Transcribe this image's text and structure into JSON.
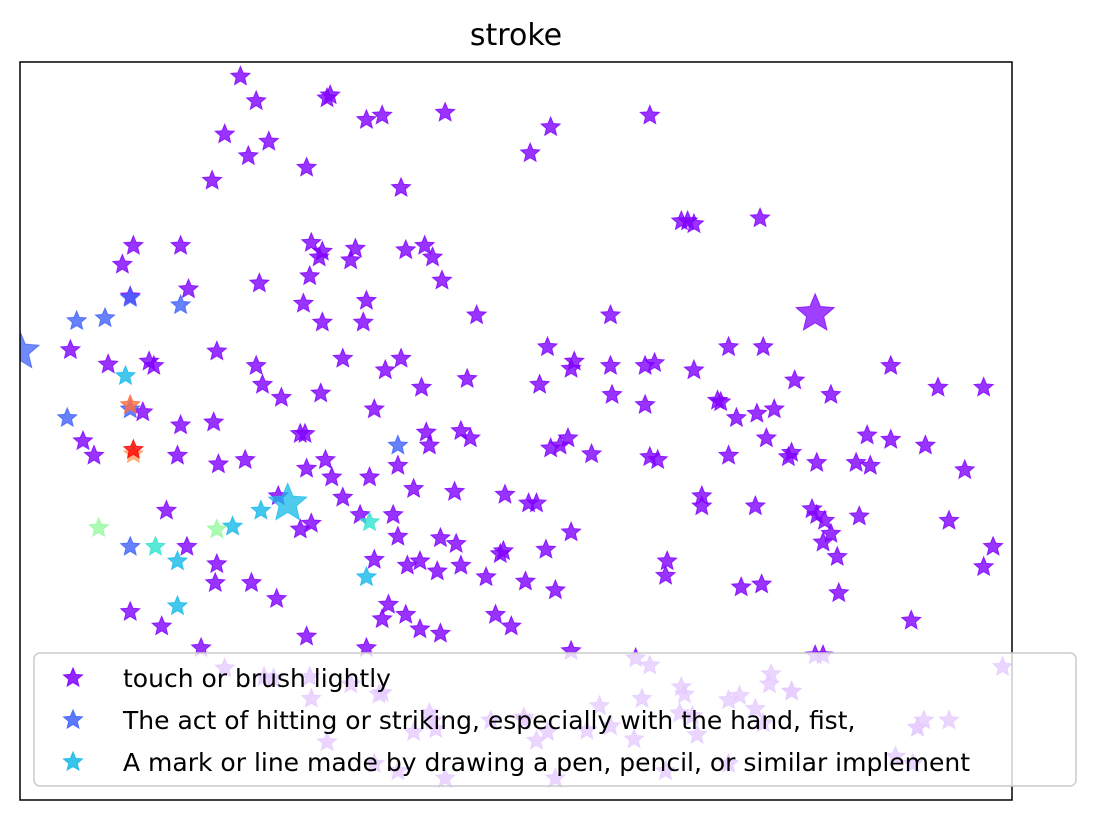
{
  "chart_data": {
    "type": "scatter",
    "title": "stroke",
    "xlabel": "",
    "ylabel": "",
    "xlim": [
      -2.9,
      3.4
    ],
    "ylim": [
      -2.75,
      2.35
    ],
    "grid": false,
    "legend": "bottom",
    "marker": "star",
    "series": [
      {
        "name": "touch or brush lightly",
        "color": "#8000ff",
        "points": [
          [
            -1.5,
            2.25
          ],
          [
            -1.4,
            2.08
          ],
          [
            -0.95,
            2.1
          ],
          [
            -0.93,
            2.12
          ],
          [
            -0.7,
            1.95
          ],
          [
            -0.6,
            1.98
          ],
          [
            -1.6,
            1.85
          ],
          [
            -1.32,
            1.8
          ],
          [
            -1.45,
            1.7
          ],
          [
            -0.2,
            2.0
          ],
          [
            0.34,
            1.72
          ],
          [
            0.47,
            1.9
          ],
          [
            1.1,
            1.98
          ],
          [
            -1.68,
            1.53
          ],
          [
            -1.08,
            1.62
          ],
          [
            -0.48,
            1.48
          ],
          [
            1.3,
            1.25
          ],
          [
            1.34,
            1.25
          ],
          [
            1.38,
            1.23
          ],
          [
            1.8,
            1.27
          ],
          [
            -2.18,
            1.08
          ],
          [
            -1.88,
            1.08
          ],
          [
            -0.77,
            1.06
          ],
          [
            -1.05,
            1.1
          ],
          [
            -1.0,
            1.0
          ],
          [
            -0.8,
            0.98
          ],
          [
            -0.98,
            1.04
          ],
          [
            -0.45,
            1.05
          ],
          [
            -0.33,
            1.08
          ],
          [
            -0.28,
            1.0
          ],
          [
            -2.25,
            0.95
          ],
          [
            -1.83,
            0.78
          ],
          [
            -1.38,
            0.82
          ],
          [
            -1.1,
            0.68
          ],
          [
            -1.06,
            0.87
          ],
          [
            -0.7,
            0.7
          ],
          [
            -0.22,
            0.84
          ],
          [
            -0.0,
            0.6
          ],
          [
            -2.2,
            0.73
          ],
          [
            -0.98,
            0.55
          ],
          [
            -0.72,
            0.55
          ],
          [
            -0.48,
            0.3
          ],
          [
            0.85,
            0.6
          ],
          [
            0.45,
            0.38
          ],
          [
            0.62,
            0.28
          ],
          [
            0.85,
            0.25
          ],
          [
            1.07,
            0.25
          ],
          [
            1.13,
            0.27
          ],
          [
            1.38,
            0.22
          ],
          [
            1.82,
            0.38
          ],
          [
            1.6,
            0.38
          ],
          [
            -2.58,
            0.36
          ],
          [
            -2.34,
            0.26
          ],
          [
            -2.05,
            0.25
          ],
          [
            -2.08,
            0.28
          ],
          [
            -1.65,
            0.35
          ],
          [
            -1.4,
            0.25
          ],
          [
            -1.36,
            0.12
          ],
          [
            -0.58,
            0.22
          ],
          [
            -0.35,
            0.1
          ],
          [
            -0.06,
            0.16
          ],
          [
            0.4,
            0.12
          ],
          [
            0.6,
            0.23
          ],
          [
            0.86,
            0.05
          ],
          [
            1.07,
            -0.02
          ],
          [
            1.53,
            0.01
          ],
          [
            1.55,
            0.0
          ],
          [
            1.78,
            -0.08
          ],
          [
            1.65,
            -0.11
          ],
          [
            1.89,
            -0.05
          ],
          [
            2.02,
            0.15
          ],
          [
            2.25,
            0.05
          ],
          [
            2.63,
            0.25
          ],
          [
            2.93,
            0.1
          ],
          [
            3.22,
            0.1
          ],
          [
            -1.24,
            0.03
          ],
          [
            -0.99,
            0.06
          ],
          [
            -0.85,
            0.3
          ],
          [
            -1.88,
            -0.16
          ],
          [
            -1.67,
            -0.14
          ],
          [
            -0.65,
            -0.05
          ],
          [
            -0.32,
            -0.21
          ],
          [
            -0.3,
            -0.3
          ],
          [
            -0.1,
            -0.2
          ],
          [
            -0.04,
            -0.25
          ],
          [
            0.47,
            -0.32
          ],
          [
            0.53,
            -0.3
          ],
          [
            0.58,
            -0.25
          ],
          [
            0.73,
            -0.36
          ],
          [
            1.6,
            -0.37
          ],
          [
            1.84,
            -0.25
          ],
          [
            2.0,
            -0.35
          ],
          [
            2.48,
            -0.23
          ],
          [
            2.63,
            -0.26
          ],
          [
            2.85,
            -0.3
          ],
          [
            -2.12,
            -0.07
          ],
          [
            -1.9,
            -0.37
          ],
          [
            -1.47,
            -0.4
          ],
          [
            -0.96,
            -0.4
          ],
          [
            -1.26,
            -0.65
          ],
          [
            -1.64,
            -0.43
          ],
          [
            -1.12,
            -0.22
          ],
          [
            -1.09,
            -0.22
          ],
          [
            -1.08,
            -0.46
          ],
          [
            -0.92,
            -0.52
          ],
          [
            -0.85,
            -0.66
          ],
          [
            -0.68,
            -0.52
          ],
          [
            -0.5,
            -0.44
          ],
          [
            -0.4,
            -0.6
          ],
          [
            -0.14,
            -0.62
          ],
          [
            0.18,
            -0.64
          ],
          [
            0.33,
            -0.7
          ],
          [
            0.38,
            -0.7
          ],
          [
            1.1,
            -0.38
          ],
          [
            1.15,
            -0.4
          ],
          [
            1.98,
            -0.38
          ],
          [
            2.16,
            -0.42
          ],
          [
            2.41,
            -0.42
          ],
          [
            2.5,
            -0.44
          ],
          [
            3.1,
            -0.47
          ],
          [
            -2.43,
            -0.37
          ],
          [
            -2.5,
            -0.27
          ],
          [
            -1.97,
            -0.75
          ],
          [
            -1.12,
            -0.88
          ],
          [
            -1.05,
            -0.84
          ],
          [
            -0.74,
            -0.78
          ],
          [
            -0.53,
            -0.78
          ],
          [
            -0.5,
            -0.93
          ],
          [
            -0.23,
            -0.94
          ],
          [
            -0.13,
            -0.98
          ],
          [
            0.15,
            -1.05
          ],
          [
            0.17,
            -1.03
          ],
          [
            0.44,
            -1.02
          ],
          [
            0.6,
            -0.9
          ],
          [
            1.43,
            -0.65
          ],
          [
            1.43,
            -0.72
          ],
          [
            1.77,
            -0.72
          ],
          [
            2.13,
            -0.74
          ],
          [
            2.16,
            -0.78
          ],
          [
            2.21,
            -0.82
          ],
          [
            2.2,
            -0.97
          ],
          [
            2.29,
            -1.07
          ],
          [
            2.25,
            -0.91
          ],
          [
            2.43,
            -0.79
          ],
          [
            3.0,
            -0.82
          ],
          [
            3.28,
            -1.0
          ],
          [
            -1.65,
            -1.12
          ],
          [
            -1.84,
            -1.0
          ],
          [
            -0.65,
            -1.09
          ],
          [
            -0.44,
            -1.13
          ],
          [
            -0.36,
            -1.1
          ],
          [
            -0.25,
            -1.17
          ],
          [
            -0.1,
            -1.13
          ],
          [
            0.06,
            -1.21
          ],
          [
            0.31,
            -1.24
          ],
          [
            1.21,
            -1.1
          ],
          [
            0.5,
            -1.3
          ],
          [
            1.2,
            -1.2
          ],
          [
            1.68,
            -1.28
          ],
          [
            1.81,
            -1.26
          ],
          [
            2.3,
            -1.32
          ],
          [
            3.22,
            -1.14
          ],
          [
            -2.2,
            -1.45
          ],
          [
            -1.66,
            -1.25
          ],
          [
            -1.43,
            -1.25
          ],
          [
            -1.27,
            -1.36
          ],
          [
            -0.56,
            -1.4
          ],
          [
            -0.45,
            -1.47
          ],
          [
            0.12,
            -1.47
          ],
          [
            0.22,
            -1.55
          ],
          [
            -2.0,
            -1.55
          ],
          [
            -0.6,
            -1.5
          ],
          [
            -0.36,
            -1.57
          ],
          [
            -0.23,
            -1.6
          ],
          [
            0.6,
            -1.72
          ],
          [
            1.1,
            -1.82
          ],
          [
            2.76,
            -1.51
          ],
          [
            -1.75,
            -1.7
          ],
          [
            -1.08,
            -1.62
          ],
          [
            -0.7,
            -1.7
          ],
          [
            -1.6,
            -1.84
          ],
          [
            -1.35,
            -1.9
          ],
          [
            -1.29,
            -1.91
          ],
          [
            -1.06,
            -1.9
          ],
          [
            -0.6,
            -2.01
          ],
          [
            -0.8,
            -1.95
          ],
          [
            -0.62,
            -2.02
          ],
          [
            -1.05,
            -2.05
          ],
          [
            1.01,
            -1.77
          ],
          [
            1.87,
            -1.88
          ],
          [
            1.86,
            -1.95
          ],
          [
            2.0,
            -2.0
          ],
          [
            2.15,
            -1.75
          ],
          [
            2.2,
            -1.75
          ],
          [
            3.34,
            -1.83
          ],
          [
            1.32,
            -2.02
          ],
          [
            1.3,
            -1.97
          ],
          [
            1.67,
            -2.03
          ],
          [
            1.77,
            -2.12
          ],
          [
            1.82,
            -2.22
          ],
          [
            1.6,
            -2.06
          ],
          [
            1.37,
            -2.17
          ],
          [
            1.29,
            -2.15
          ],
          [
            1.05,
            -2.05
          ],
          [
            1.0,
            -2.33
          ],
          [
            0.85,
            -2.24
          ],
          [
            0.7,
            -2.27
          ],
          [
            0.45,
            -2.28
          ],
          [
            0.38,
            -2.34
          ],
          [
            0.3,
            -2.18
          ],
          [
            0.09,
            -2.2
          ],
          [
            0.78,
            -2.1
          ],
          [
            -0.3,
            -2.15
          ],
          [
            -0.28,
            -2.2
          ],
          [
            -0.26,
            -2.26
          ],
          [
            0.3,
            -2.2
          ],
          [
            -0.4,
            -2.28
          ],
          [
            2.8,
            -2.25
          ],
          [
            1.4,
            -2.3
          ],
          [
            1.6,
            -2.5
          ],
          [
            2.0,
            -2.0
          ],
          [
            2.8,
            -2.25
          ],
          [
            2.84,
            -2.2
          ],
          [
            2.66,
            -2.45
          ],
          [
            2.77,
            -2.5
          ],
          [
            3.0,
            -2.2
          ],
          [
            -0.95,
            -2.35
          ],
          [
            -0.65,
            -2.5
          ],
          [
            -0.5,
            -2.55
          ],
          [
            1.2,
            -2.55
          ],
          [
            0.5,
            -2.6
          ],
          [
            -0.2,
            -2.6
          ]
        ]
      },
      {
        "name": "The act of hitting or striking, especially with the hand, fist,",
        "color": "#4062fa",
        "points": [
          [
            -2.54,
            0.56
          ],
          [
            -2.36,
            0.58
          ],
          [
            -2.2,
            0.72
          ],
          [
            -1.88,
            0.67
          ],
          [
            -2.2,
            -0.05
          ],
          [
            -2.6,
            -0.11
          ],
          [
            -0.5,
            -0.3
          ],
          [
            -2.2,
            -1.0
          ]
        ]
      },
      {
        "name": "A mark or line made by drawing a pen, pencil, or similar implement",
        "color": "#15b9e8",
        "points": [
          [
            -2.23,
            0.18
          ],
          [
            -1.55,
            -0.86
          ],
          [
            -1.9,
            -1.1
          ],
          [
            -1.37,
            -0.75
          ],
          [
            -0.7,
            -1.21
          ],
          [
            -1.9,
            -1.41
          ]
        ]
      },
      {
        "name": "",
        "color": "#30e3d0",
        "points": [
          [
            -2.04,
            -1.0
          ],
          [
            -0.68,
            -0.83
          ]
        ]
      },
      {
        "name": "",
        "color": "#96fa9d",
        "points": [
          [
            -2.4,
            -0.87
          ],
          [
            -1.65,
            -0.88
          ]
        ]
      },
      {
        "name": "",
        "color": "#ff6d3e",
        "points": [
          [
            -2.2,
            -0.02
          ]
        ]
      },
      {
        "name": "",
        "color": "#ffa060",
        "points": [
          [
            -2.18,
            -0.36
          ]
        ]
      },
      {
        "name": "",
        "color": "#ff0000",
        "points": [
          [
            -2.18,
            -0.33
          ]
        ]
      }
    ],
    "highlights": [
      {
        "series": 0,
        "x": 2.15,
        "y": 0.61
      },
      {
        "series": 1,
        "x": -2.9,
        "y": 0.35
      },
      {
        "series": 2,
        "x": -1.2,
        "y": -0.7
      }
    ]
  }
}
